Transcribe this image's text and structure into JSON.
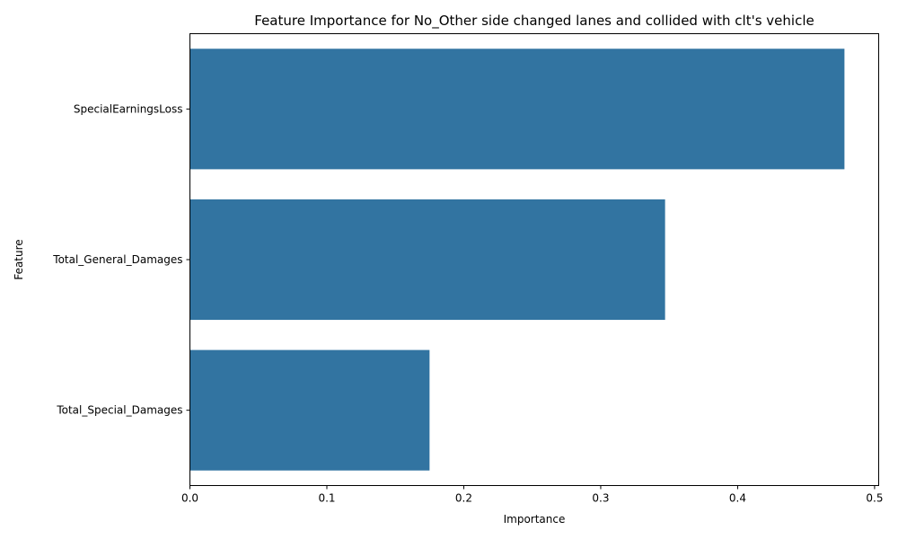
{
  "chart_data": {
    "type": "bar",
    "orientation": "horizontal",
    "title": "Feature Importance for No_Other side changed lanes and collided with clt's vehicle",
    "xlabel": "Importance",
    "ylabel": "Feature",
    "categories": [
      "SpecialEarningsLoss",
      "Total_General_Damages",
      "Total_Special_Damages"
    ],
    "values": [
      0.478,
      0.347,
      0.175
    ],
    "xlim": [
      0,
      0.503
    ],
    "xticks": [
      0.0,
      0.1,
      0.2,
      0.3,
      0.4,
      0.5
    ],
    "xtick_labels": [
      "0.0",
      "0.1",
      "0.2",
      "0.3",
      "0.4",
      "0.5"
    ],
    "bar_color": "#3274a1",
    "grid": false,
    "legend": "none"
  }
}
